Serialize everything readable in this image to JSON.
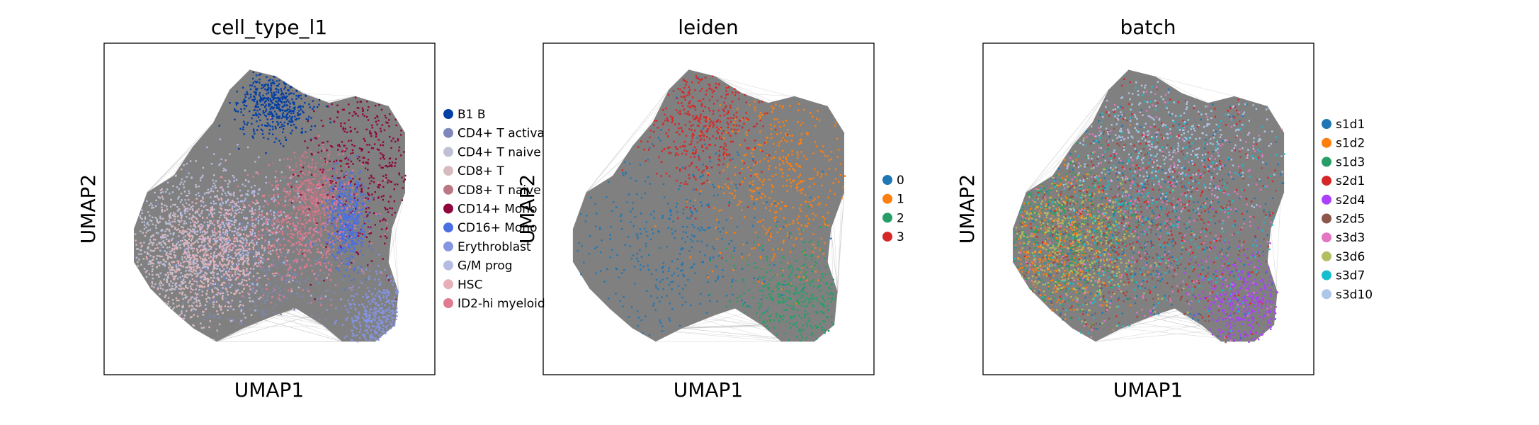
{
  "chart_data": [
    {
      "type": "scatter",
      "title": "cell_type_l1",
      "xlabel": "UMAP1",
      "ylabel": "UMAP2",
      "grid": false,
      "ticks": false,
      "legend_position": "right",
      "background_edges_color": "#808080",
      "series": [
        {
          "name": "B1 B",
          "color": "#023fa5",
          "region": [
            0.52,
            0.18,
            0.06,
            0.05
          ]
        },
        {
          "name": "CD4+ T activa",
          "color": "#7d87b9",
          "region": [
            0.43,
            0.68,
            0.14,
            0.1
          ]
        },
        {
          "name": "CD4+ T naive",
          "color": "#bec1d4",
          "region": [
            0.2,
            0.58,
            0.1,
            0.1
          ]
        },
        {
          "name": "CD8+ T",
          "color": "#d6bcc0",
          "region": [
            0.26,
            0.7,
            0.12,
            0.1
          ]
        },
        {
          "name": "CD8+ T naive",
          "color": "#bb7784",
          "region": [
            0.63,
            0.45,
            0.05,
            0.06
          ]
        },
        {
          "name": "CD14+ Mono",
          "color": "#8e063b",
          "region": [
            0.8,
            0.36,
            0.1,
            0.14
          ]
        },
        {
          "name": "CD16+ Mono",
          "color": "#4a6fe3",
          "region": [
            0.73,
            0.53,
            0.03,
            0.07
          ]
        },
        {
          "name": "Erythroblast",
          "color": "#8595e1",
          "region": [
            0.83,
            0.83,
            0.06,
            0.06
          ]
        },
        {
          "name": "G/M prog",
          "color": "#b5bbe3",
          "region": [
            0.38,
            0.55,
            0.1,
            0.1
          ]
        },
        {
          "name": "HSC",
          "color": "#e6afb9",
          "region": [
            0.32,
            0.62,
            0.08,
            0.08
          ]
        },
        {
          "name": "ID2-hi myeloid",
          "color": "#e07b91",
          "region": [
            0.6,
            0.55,
            0.1,
            0.1
          ]
        }
      ]
    },
    {
      "type": "scatter",
      "title": "leiden",
      "xlabel": "UMAP1",
      "ylabel": "UMAP2",
      "grid": false,
      "ticks": false,
      "legend_position": "right",
      "background_edges_color": "#808080",
      "series": [
        {
          "name": "0",
          "color": "#1f77b4",
          "region": [
            0.33,
            0.63,
            0.2,
            0.18
          ]
        },
        {
          "name": "1",
          "color": "#ff7f0e",
          "region": [
            0.73,
            0.4,
            0.12,
            0.16
          ]
        },
        {
          "name": "2",
          "color": "#279e68",
          "region": [
            0.77,
            0.77,
            0.1,
            0.09
          ]
        },
        {
          "name": "3",
          "color": "#d62728",
          "region": [
            0.47,
            0.24,
            0.09,
            0.1
          ]
        }
      ]
    },
    {
      "type": "scatter",
      "title": "batch",
      "xlabel": "UMAP1",
      "ylabel": "UMAP2",
      "grid": false,
      "ticks": false,
      "legend_position": "right",
      "background_edges_color": "#808080",
      "series": [
        {
          "name": "s1d1",
          "color": "#1f77b4",
          "region": [
            0.45,
            0.55,
            0.26,
            0.25
          ]
        },
        {
          "name": "s1d2",
          "color": "#ff7f0e",
          "region": [
            0.22,
            0.62,
            0.1,
            0.12
          ]
        },
        {
          "name": "s1d3",
          "color": "#279e68",
          "region": [
            0.25,
            0.55,
            0.1,
            0.12
          ]
        },
        {
          "name": "s2d1",
          "color": "#d62728",
          "region": [
            0.55,
            0.5,
            0.25,
            0.25
          ]
        },
        {
          "name": "s2d4",
          "color": "#aa40fc",
          "region": [
            0.8,
            0.78,
            0.08,
            0.08
          ]
        },
        {
          "name": "s2d5",
          "color": "#8c564b",
          "region": [
            0.4,
            0.6,
            0.2,
            0.2
          ]
        },
        {
          "name": "s3d3",
          "color": "#e377c2",
          "region": [
            0.5,
            0.5,
            0.25,
            0.25
          ]
        },
        {
          "name": "s3d6",
          "color": "#b5bd61",
          "region": [
            0.28,
            0.6,
            0.12,
            0.12
          ]
        },
        {
          "name": "s3d7",
          "color": "#17becf",
          "region": [
            0.5,
            0.5,
            0.25,
            0.25
          ]
        },
        {
          "name": "s3d10",
          "color": "#aec7e8",
          "region": [
            0.55,
            0.28,
            0.2,
            0.1
          ]
        }
      ]
    }
  ]
}
